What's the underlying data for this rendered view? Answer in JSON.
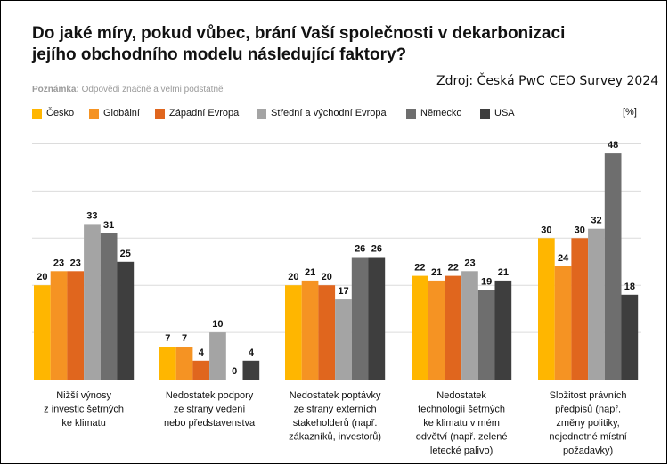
{
  "title": "Do jaké míry, pokud vůbec, brání Vaší společnosti v dekarbonizaci jejího obchodního modelu následující faktory?",
  "source": "Zdroj: Česká PwC CEO Survey 2024",
  "note": {
    "label": "Poznámka:",
    "text": "Odpovědi značně a velmi podstatně"
  },
  "unit": "[%]",
  "chart_data": {
    "type": "bar",
    "categories": [
      [
        "Nižší výnosy",
        "z investic šetrných",
        "ke klimatu"
      ],
      [
        "Nedostatek podpory",
        "ze strany vedení",
        "nebo představenstva"
      ],
      [
        "Nedostatek poptávky",
        "ze strany externích",
        "stakeholderů (např.",
        "zákazníků, investorů)"
      ],
      [
        "Nedostatek",
        "technologií šetrných",
        "ke klimatu v mém",
        "odvětví (např. zelené",
        "letecké palivo)"
      ],
      [
        "Složitost právních",
        "předpisů (např.",
        "změny politiky,",
        "nejednotné místní",
        "požadavky)"
      ]
    ],
    "series": [
      {
        "name": "Česko",
        "color": "#FFB600",
        "values": [
          20,
          7,
          20,
          22,
          30
        ]
      },
      {
        "name": "Globální",
        "color": "#F59323",
        "values": [
          23,
          7,
          21,
          21,
          24
        ]
      },
      {
        "name": "Západní Evropa",
        "color": "#E0661E",
        "values": [
          23,
          4,
          20,
          22,
          30
        ]
      },
      {
        "name": "Střední a východní Evropa",
        "color": "#A4A4A4",
        "values": [
          33,
          10,
          17,
          23,
          32
        ]
      },
      {
        "name": "Německo",
        "color": "#6E6E6E",
        "values": [
          31,
          0,
          26,
          19,
          48
        ]
      },
      {
        "name": "USA",
        "color": "#3E3E3E",
        "values": [
          25,
          4,
          26,
          21,
          18
        ]
      }
    ],
    "ylim": [
      0,
      55
    ],
    "grid": true,
    "legend": "top",
    "data_labels": true
  }
}
